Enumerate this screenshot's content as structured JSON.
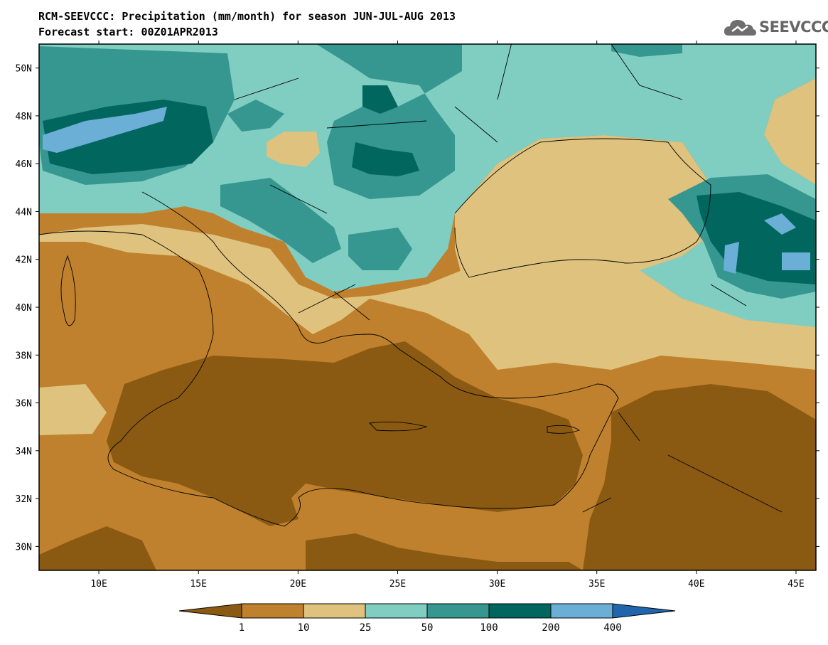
{
  "header": {
    "title_line1": "RCM-SEEVCCC: Precipitation (mm/month) for season JUN-JUL-AUG 2013",
    "title_line2": "Forecast start: 00Z01APR2013",
    "logo_text": "SEEVCCC"
  },
  "map": {
    "lon_range": [
      7,
      46
    ],
    "lat_range": [
      29,
      51
    ],
    "lat_ticks": [
      "30N",
      "32N",
      "34N",
      "36N",
      "38N",
      "40N",
      "42N",
      "44N",
      "46N",
      "48N",
      "50N"
    ],
    "lon_ticks": [
      "10E",
      "15E",
      "20E",
      "25E",
      "30E",
      "35E",
      "40E",
      "45E"
    ]
  },
  "legend": {
    "labels": [
      "1",
      "10",
      "25",
      "50",
      "100",
      "200",
      "400"
    ],
    "colors": [
      "#8b5a12",
      "#bf812d",
      "#dfc27d",
      "#80cdc1",
      "#35978f",
      "#01665e",
      "#6baed6",
      "#2166ac"
    ]
  }
}
